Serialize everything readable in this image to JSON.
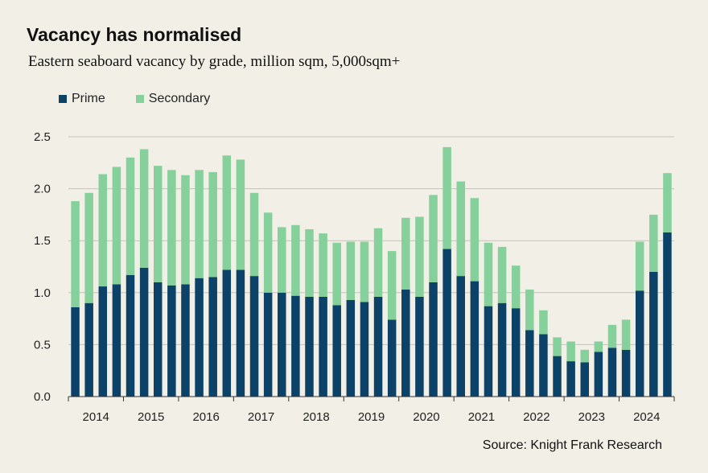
{
  "title": "Vacancy has normalised",
  "subtitle": "Eastern seaboard vacancy by grade, million sqm, 5,000sqm+",
  "source": "Source: Knight Frank Research",
  "colors": {
    "prime": "#0d4268",
    "secondary": "#85d09b",
    "grid": "#c4c2bb",
    "axis": "#333333"
  },
  "chart_data": {
    "type": "bar",
    "stacked": true,
    "ylim": [
      0,
      2.5
    ],
    "yticks": [
      "0.0",
      "0.5",
      "1.0",
      "1.5",
      "2.0",
      "2.5"
    ],
    "year_labels": [
      "2014",
      "2015",
      "2016",
      "2017",
      "2018",
      "2019",
      "2020",
      "2021",
      "2022",
      "2023",
      "2024"
    ],
    "legend_position": "top-left",
    "series": [
      {
        "name": "Prime",
        "values": [
          0.86,
          0.9,
          1.06,
          1.08,
          1.17,
          1.24,
          1.1,
          1.07,
          1.08,
          1.14,
          1.15,
          1.22,
          1.22,
          1.16,
          1.0,
          1.0,
          0.97,
          0.96,
          0.96,
          0.88,
          0.93,
          0.91,
          0.96,
          0.74,
          1.03,
          0.96,
          1.1,
          1.42,
          1.16,
          1.11,
          0.87,
          0.9,
          0.85,
          0.64,
          0.6,
          0.39,
          0.34,
          0.33,
          0.43,
          0.47,
          0.45,
          1.02,
          1.2,
          1.58
        ]
      },
      {
        "name": "Secondary",
        "values": [
          1.02,
          1.06,
          1.08,
          1.13,
          1.13,
          1.14,
          1.12,
          1.11,
          1.05,
          1.04,
          1.01,
          1.1,
          1.06,
          0.8,
          0.77,
          0.63,
          0.68,
          0.65,
          0.61,
          0.6,
          0.56,
          0.58,
          0.66,
          0.66,
          0.69,
          0.77,
          0.84,
          0.98,
          0.91,
          0.8,
          0.61,
          0.54,
          0.41,
          0.39,
          0.23,
          0.18,
          0.19,
          0.12,
          0.1,
          0.22,
          0.29,
          0.47,
          0.55,
          0.57
        ]
      }
    ]
  }
}
